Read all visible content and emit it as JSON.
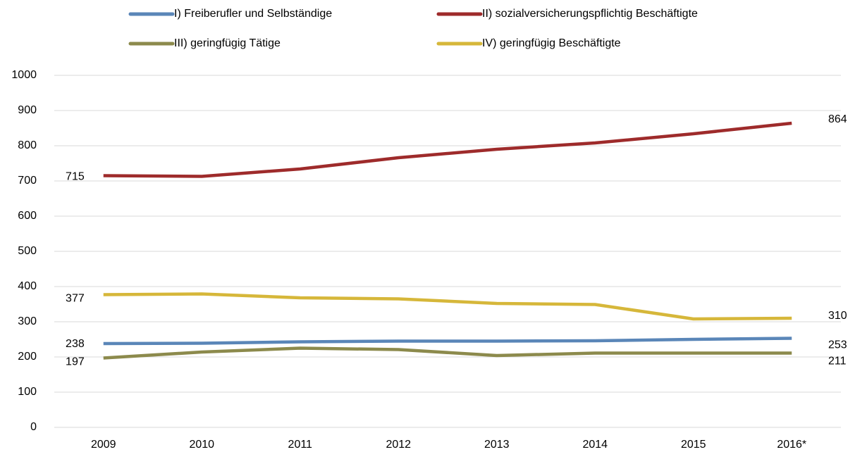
{
  "chart_data": {
    "type": "line",
    "categories": [
      "2009",
      "2010",
      "2011",
      "2012",
      "2013",
      "2014",
      "2015",
      "2016*"
    ],
    "series": [
      {
        "name": "I) Freiberufler und Selbständige",
        "color": "#5a86b8",
        "values": [
          238,
          239,
          243,
          245,
          245,
          246,
          250,
          253
        ]
      },
      {
        "name": "II) sozialversicherungspflichtig Beschäftigte",
        "color": "#9e2b2b",
        "values": [
          715,
          713,
          734,
          766,
          790,
          808,
          834,
          864
        ]
      },
      {
        "name": "III) geringfügig Tätige",
        "color": "#8c8a4c",
        "values": [
          197,
          214,
          225,
          221,
          204,
          211,
          211,
          211
        ]
      },
      {
        "name": "IV) geringfügig Beschäftigte",
        "color": "#d6b73a",
        "values": [
          377,
          379,
          368,
          365,
          352,
          349,
          308,
          310
        ]
      }
    ],
    "ylim": [
      0,
      1000
    ],
    "yticks": [
      0,
      100,
      200,
      300,
      400,
      500,
      600,
      700,
      800,
      900,
      1000
    ],
    "grid": true
  }
}
